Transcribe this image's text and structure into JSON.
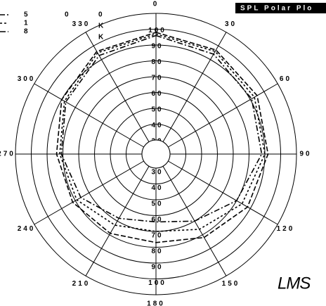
{
  "chart_data": {
    "type": "polar",
    "title": "SPL Polar Plo",
    "theta": [
      0,
      30,
      60,
      90,
      120,
      150,
      180,
      210,
      240,
      270,
      300,
      330,
      360
    ],
    "series": [
      {
        "name": "5",
        "color": "#000000",
        "dash": "7,3",
        "values": [
          98,
          97,
          95,
          92,
          88,
          82,
          77,
          79,
          82,
          84,
          90,
          96,
          98
        ]
      },
      {
        "name": "1",
        "color": "#000000",
        "dash": "3,3",
        "values": [
          97,
          96,
          93,
          90,
          84,
          76,
          70,
          73,
          79,
          82,
          88,
          95,
          97
        ]
      },
      {
        "name": "8",
        "color": "#000000",
        "dash": "8,3,2,3",
        "values": [
          96,
          94,
          91,
          88,
          80,
          70,
          64,
          68,
          76,
          81,
          87,
          93,
          96
        ]
      }
    ],
    "rlim": [
      30,
      110
    ],
    "rticks": [
      30,
      40,
      50,
      60,
      70,
      80,
      90,
      100
    ],
    "thetaticks": [
      0,
      30,
      60,
      90,
      120,
      150,
      180,
      210,
      240,
      270,
      300,
      330
    ],
    "annotations": [
      "0",
      "0",
      "K",
      "K"
    ],
    "logo": "LMS"
  }
}
